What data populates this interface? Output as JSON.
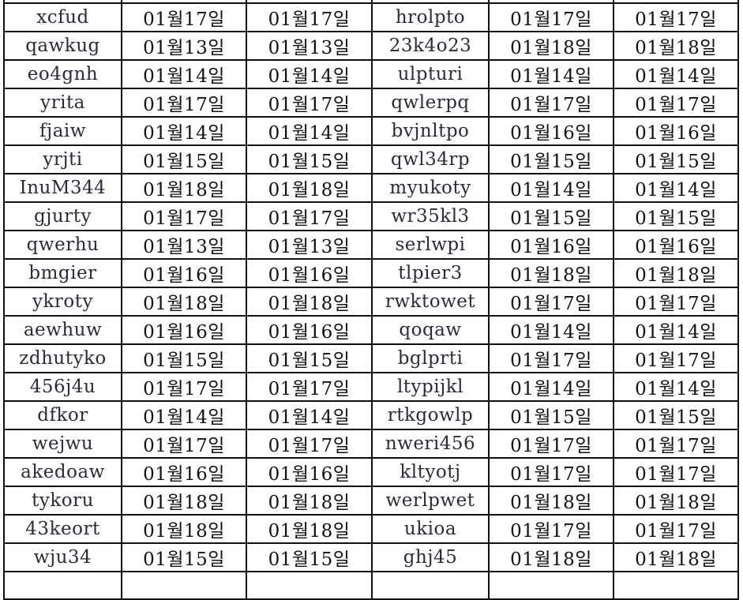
{
  "rows": [
    [
      "xcfud",
      "01월17일",
      "01월17일",
      "hrolpto",
      "01월17일",
      "01월17일"
    ],
    [
      "qawkug",
      "01월13일",
      "01월13일",
      "23k4o23",
      "01월18일",
      "01월18일"
    ],
    [
      "eo4gnh",
      "01월14일",
      "01월14일",
      "ulpturi",
      "01월14일",
      "01월14일"
    ],
    [
      "yrita",
      "01월17일",
      "01월17일",
      "qwlerpq",
      "01월17일",
      "01월17일"
    ],
    [
      "fjaiw",
      "01월14일",
      "01월14일",
      "bvjnltpo",
      "01월16일",
      "01월16일"
    ],
    [
      "yrjti",
      "01월15일",
      "01월15일",
      "qwl34rp",
      "01월15일",
      "01월15일"
    ],
    [
      "InuM344",
      "01월18일",
      "01월18일",
      "myukoty",
      "01월14일",
      "01월14일"
    ],
    [
      "gjurty",
      "01월17일",
      "01월17일",
      "wr35kl3",
      "01월15일",
      "01월15일"
    ],
    [
      "qwerhu",
      "01월13일",
      "01월13일",
      "serlwpi",
      "01월16일",
      "01월16일"
    ],
    [
      "bmgier",
      "01월16일",
      "01월16일",
      "tlpier3",
      "01월18일",
      "01월18일"
    ],
    [
      "ykroty",
      "01월18일",
      "01월18일",
      "rwktowet",
      "01월17일",
      "01월17일"
    ],
    [
      "aewhuw",
      "01월16일",
      "01월16일",
      "qoqaw",
      "01월14일",
      "01월14일"
    ],
    [
      "zdhutyko",
      "01월15일",
      "01월15일",
      "bglprti",
      "01월17일",
      "01월17일"
    ],
    [
      "456j4u",
      "01월17일",
      "01월17일",
      "ltypijkl",
      "01월14일",
      "01월14일"
    ],
    [
      "dfkor",
      "01월14일",
      "01월14일",
      "rtkgowlp",
      "01월15일",
      "01월15일"
    ],
    [
      "wejwu",
      "01월17일",
      "01월17일",
      "nweri456",
      "01월17일",
      "01월17일"
    ],
    [
      "akedoaw",
      "01월16일",
      "01월16일",
      "kltyotj",
      "01월17일",
      "01월17일"
    ],
    [
      "tykoru",
      "01월18일",
      "01월18일",
      "werlpwet",
      "01월18일",
      "01월18일"
    ],
    [
      "43keort",
      "01월18일",
      "01월18일",
      "ukioa",
      "01월17일",
      "01월17일"
    ],
    [
      "wju34",
      "01월15일",
      "01월15일",
      "ghj45",
      "01월18일",
      "01월18일"
    ]
  ]
}
